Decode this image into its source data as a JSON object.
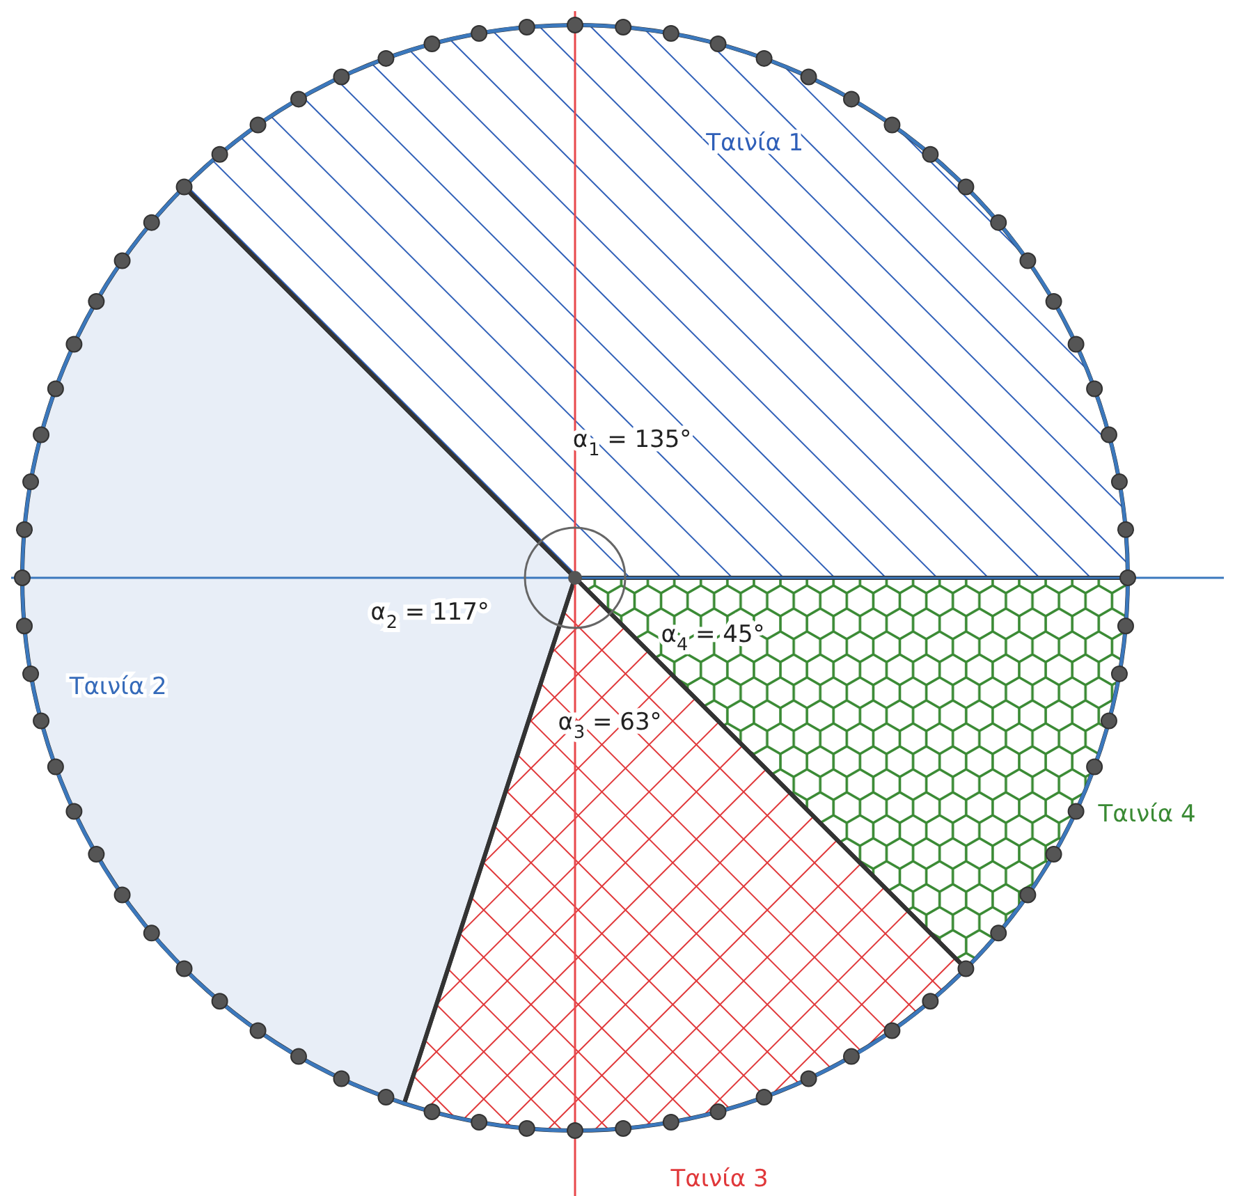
{
  "chart_data": {
    "type": "pie",
    "categories": [
      "Ταινία 1",
      "Ταινία 2",
      "Ταινία 3",
      "Ταινία 4"
    ],
    "values": [
      135,
      117,
      63,
      45
    ],
    "colors": [
      "#2f5fb8",
      "#e8eef7",
      "#e0383a",
      "#3a8a34"
    ],
    "value_labels": [
      "α$_{1}$ = 135°",
      "α$_{2}$ = 117°",
      "α$_{3}$ = 63°",
      "α$_{4}$ = 45°"
    ],
    "legend": false
  }
}
